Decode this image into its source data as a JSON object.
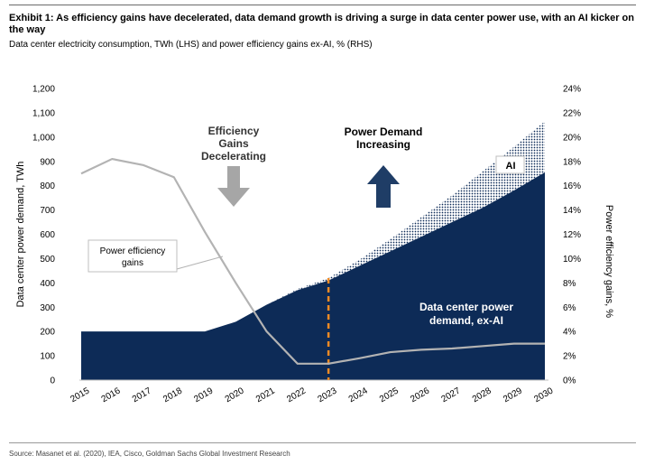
{
  "header": {
    "title": "Exhibit 1: As efficiency gains have decelerated, data demand growth is driving a surge in data center power use, with an AI kicker on the way",
    "subtitle": "Data center electricity consumption, TWh (LHS) and power efficiency gains ex-AI, % (RHS)"
  },
  "footer": {
    "source": "Source: Masanet et al. (2020), IEA, Cisco, Goldman Sachs Global Investment Research"
  },
  "chart_data": {
    "type": "area",
    "categories": [
      "2015",
      "2016",
      "2017",
      "2018",
      "2019",
      "2020",
      "2021",
      "2022",
      "2023",
      "2024",
      "2025",
      "2026",
      "2027",
      "2028",
      "2029",
      "2030"
    ],
    "series": [
      {
        "name": "Data center power demand, ex-AI",
        "axis": "left",
        "kind": "area",
        "values": [
          200,
          200,
          200,
          200,
          200,
          240,
          310,
          370,
          410,
          470,
          530,
          590,
          650,
          710,
          780,
          855
        ]
      },
      {
        "name": "AI",
        "axis": "left",
        "kind": "stacked-area",
        "pattern": "hatched",
        "values": [
          0,
          0,
          0,
          0,
          0,
          0,
          0,
          5,
          10,
          25,
          50,
          80,
          110,
          150,
          180,
          210
        ]
      },
      {
        "name": "Power efficiency gains",
        "axis": "right",
        "kind": "line",
        "values": [
          17,
          18.2,
          17.7,
          16.7,
          12.2,
          8,
          4,
          1.35,
          1.35,
          1.8,
          2.3,
          2.5,
          2.6,
          2.8,
          3,
          3
        ]
      }
    ],
    "y_left": {
      "label": "Data center power demand, TWh",
      "min": 0,
      "max": 1200,
      "ticks": [
        "0",
        "100",
        "200",
        "300",
        "400",
        "500",
        "600",
        "700",
        "800",
        "900",
        "1,000",
        "1,100",
        "1,200"
      ]
    },
    "y_right": {
      "label": "Power efficiency gains, %",
      "min": 0,
      "max": 24,
      "ticks": [
        "0%",
        "2%",
        "4%",
        "6%",
        "8%",
        "10%",
        "12%",
        "14%",
        "16%",
        "18%",
        "20%",
        "22%",
        "24%"
      ]
    },
    "divider_year": "2023",
    "annotations": {
      "efficiency": [
        "Efficiency",
        "Gains",
        "Decelerating"
      ],
      "demand": [
        "Power Demand",
        "Increasing"
      ],
      "ai_label": "AI",
      "line_label": [
        "Power  efficiency",
        "gains"
      ],
      "area_label": [
        "Data center power",
        "demand, ex-AI"
      ]
    },
    "colors": {
      "area": "#0d2b57",
      "line": "#b3b3b3",
      "arrow_down": "#a6a6a6",
      "arrow_up": "#1f3d66",
      "divider": "#f08a24",
      "hatch_bg": "#ffffff"
    }
  }
}
